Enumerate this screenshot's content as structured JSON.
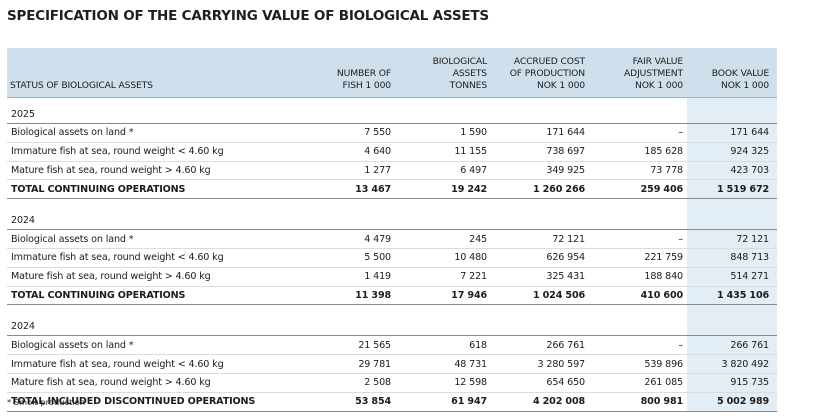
{
  "title": "SPECIFICATION OF THE CARRYING VALUE OF BIOLOGICAL ASSETS",
  "headers": {
    "status": "STATUS OF BIOLOGICAL ASSETS",
    "fish": [
      "NUMBER OF",
      "FISH 1 000"
    ],
    "biomass": [
      "BIOLOGICAL",
      "ASSETS",
      "TONNES"
    ],
    "cost": [
      "ACCRUED COST",
      "OF PRODUCTION",
      "NOK 1 000"
    ],
    "fair": [
      "FAIR VALUE",
      "ADJUSTMENT",
      "NOK 1 000"
    ],
    "book": [
      "BOOK VALUE",
      "NOK 1 000"
    ]
  },
  "sections": [
    {
      "year": "2025",
      "rows": [
        {
          "label": "Biological assets on land *",
          "fish": "7 550",
          "biomass": "1 590",
          "cost": "171 644",
          "fair": "–",
          "book": "171 644"
        },
        {
          "label": "Immature fish at sea, round weight < 4.60 kg",
          "fish": "4 640",
          "biomass": "11 155",
          "cost": "738 697",
          "fair": "185 628",
          "book": "924 325"
        },
        {
          "label": "Mature fish at sea, round weight > 4.60 kg",
          "fish": "1 277",
          "biomass": "6 497",
          "cost": "349 925",
          "fair": "73 778",
          "book": "423 703"
        }
      ],
      "total": {
        "label": "TOTAL CONTINUING OPERATIONS",
        "fish": "13 467",
        "biomass": "19 242",
        "cost": "1 260 266",
        "fair": "259 406",
        "book": "1 519 672"
      }
    },
    {
      "year": "2024",
      "rows": [
        {
          "label": "Biological assets on land *",
          "fish": "4 479",
          "biomass": "245",
          "cost": "72 121",
          "fair": "–",
          "book": "72 121"
        },
        {
          "label": "Immature fish at sea, round weight < 4.60 kg",
          "fish": "5 500",
          "biomass": "10 480",
          "cost": "626 954",
          "fair": "221 759",
          "book": "848 713"
        },
        {
          "label": "Mature fish at sea, round weight > 4.60 kg",
          "fish": "1 419",
          "biomass": "7 221",
          "cost": "325 431",
          "fair": "188 840",
          "book": "514 271"
        }
      ],
      "total": {
        "label": "TOTAL CONTINUING OPERATIONS",
        "fish": "11 398",
        "biomass": "17 946",
        "cost": "1 024 506",
        "fair": "410 600",
        "book": "1 435 106"
      }
    },
    {
      "year": "2024",
      "rows": [
        {
          "label": "Biological assets on land *",
          "fish": "21 565",
          "biomass": "618",
          "cost": "266 761",
          "fair": "–",
          "book": "266 761"
        },
        {
          "label": "Immature fish at sea, round weight < 4.60 kg",
          "fish": "29 781",
          "biomass": "48 731",
          "cost": "3 280 597",
          "fair": "539 896",
          "book": "3 820 492"
        },
        {
          "label": "Mature fish at sea, round weight > 4.60 kg",
          "fish": "2 508",
          "biomass": "12 598",
          "cost": "654 650",
          "fair": "261 085",
          "book": "915 735"
        }
      ],
      "total": {
        "label": "TOTAL INCLUDED DISCONTINUED OPERATIONS",
        "fish": "53 854",
        "biomass": "61 947",
        "cost": "4 202 008",
        "fair": "800 981",
        "book": "5 002 989"
      }
    }
  ],
  "footnote": "* Smolt production",
  "colors": {
    "header_bg": "#cfe0ec",
    "book_value_bg": "#e3edf5"
  }
}
